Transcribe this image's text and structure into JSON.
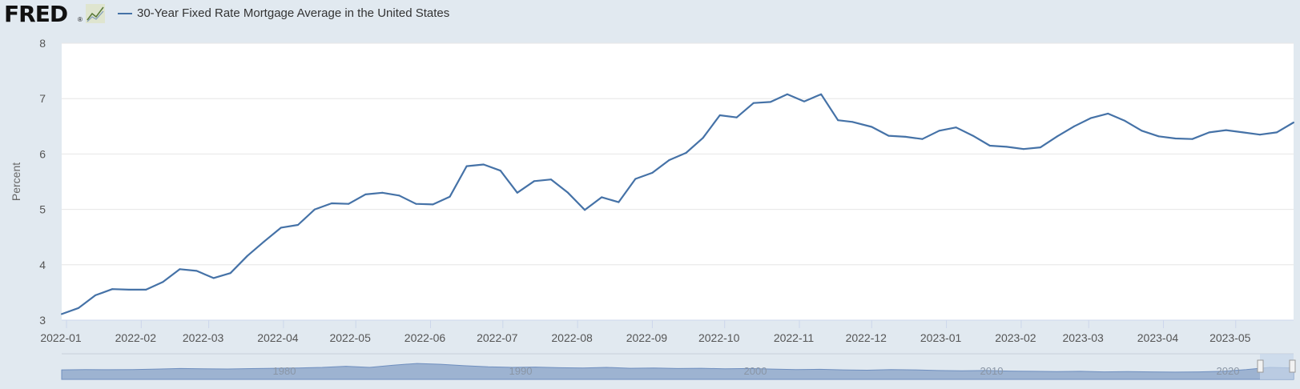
{
  "header": {
    "logo_text": "FRED",
    "logo_mark": "®",
    "legend_label": "30-Year Fixed Rate Mortgage Average in the United States"
  },
  "colors": {
    "background": "#e1e9f0",
    "plot_background": "#ffffff",
    "series_line": "#4572a7",
    "navigator_fill": "#9db3d1",
    "gridline": "#e6e6e6"
  },
  "chart_data": {
    "type": "line",
    "title": "",
    "xlabel": "",
    "ylabel": "Percent",
    "ylim": [
      3,
      8
    ],
    "yticks": [
      3,
      4,
      5,
      6,
      7,
      8
    ],
    "xlim": [
      "2021-12-30",
      "2023-05-25"
    ],
    "grid": "horizontal",
    "legend": "top-left",
    "xtick_labels": [
      "2022-01",
      "2022-02",
      "2022-03",
      "2022-04",
      "2022-05",
      "2022-06",
      "2022-07",
      "2022-08",
      "2022-09",
      "2022-10",
      "2022-11",
      "2022-12",
      "2023-01",
      "2023-02",
      "2023-03",
      "2023-04",
      "2023-05"
    ],
    "xtick_dates": [
      "2022-01-01",
      "2022-02-01",
      "2022-03-01",
      "2022-04-01",
      "2022-05-01",
      "2022-06-01",
      "2022-07-01",
      "2022-08-01",
      "2022-09-01",
      "2022-10-01",
      "2022-11-01",
      "2022-12-01",
      "2023-01-01",
      "2023-02-01",
      "2023-03-01",
      "2023-04-01",
      "2023-05-01"
    ],
    "series": [
      {
        "name": "30-Year Fixed Rate Mortgage Average in the United States",
        "x": [
          "2021-12-30",
          "2022-01-06",
          "2022-01-13",
          "2022-01-20",
          "2022-01-27",
          "2022-02-03",
          "2022-02-10",
          "2022-02-17",
          "2022-02-24",
          "2022-03-03",
          "2022-03-10",
          "2022-03-17",
          "2022-03-24",
          "2022-03-31",
          "2022-04-07",
          "2022-04-14",
          "2022-04-21",
          "2022-04-28",
          "2022-05-05",
          "2022-05-12",
          "2022-05-19",
          "2022-05-26",
          "2022-06-02",
          "2022-06-09",
          "2022-06-16",
          "2022-06-23",
          "2022-06-30",
          "2022-07-07",
          "2022-07-14",
          "2022-07-21",
          "2022-07-28",
          "2022-08-04",
          "2022-08-11",
          "2022-08-18",
          "2022-08-25",
          "2022-09-01",
          "2022-09-08",
          "2022-09-15",
          "2022-09-22",
          "2022-09-29",
          "2022-10-06",
          "2022-10-13",
          "2022-10-20",
          "2022-10-27",
          "2022-11-03",
          "2022-11-10",
          "2022-11-17",
          "2022-11-23",
          "2022-12-01",
          "2022-12-08",
          "2022-12-15",
          "2022-12-22",
          "2022-12-29",
          "2023-01-05",
          "2023-01-12",
          "2023-01-19",
          "2023-01-26",
          "2023-02-02",
          "2023-02-09",
          "2023-02-16",
          "2023-02-23",
          "2023-03-02",
          "2023-03-09",
          "2023-03-16",
          "2023-03-23",
          "2023-03-30",
          "2023-04-06",
          "2023-04-13",
          "2023-04-20",
          "2023-04-27",
          "2023-05-04",
          "2023-05-11",
          "2023-05-18",
          "2023-05-25"
        ],
        "values": [
          3.11,
          3.22,
          3.45,
          3.56,
          3.55,
          3.55,
          3.69,
          3.92,
          3.89,
          3.76,
          3.85,
          4.16,
          4.42,
          4.67,
          4.72,
          5.0,
          5.11,
          5.1,
          5.27,
          5.3,
          5.25,
          5.1,
          5.09,
          5.23,
          5.78,
          5.81,
          5.7,
          5.3,
          5.51,
          5.54,
          5.3,
          4.99,
          5.22,
          5.13,
          5.55,
          5.66,
          5.89,
          6.02,
          6.29,
          6.7,
          6.66,
          6.92,
          6.94,
          7.08,
          6.95,
          7.08,
          6.61,
          6.58,
          6.49,
          6.33,
          6.31,
          6.27,
          6.42,
          6.48,
          6.33,
          6.15,
          6.13,
          6.09,
          6.12,
          6.32,
          6.5,
          6.65,
          6.73,
          6.6,
          6.42,
          6.32,
          6.28,
          6.27,
          6.39,
          6.43,
          6.39,
          6.35,
          6.39,
          6.57
        ]
      }
    ]
  },
  "navigator": {
    "year_labels": [
      "1980",
      "1990",
      "2000",
      "2010",
      "2020"
    ]
  }
}
